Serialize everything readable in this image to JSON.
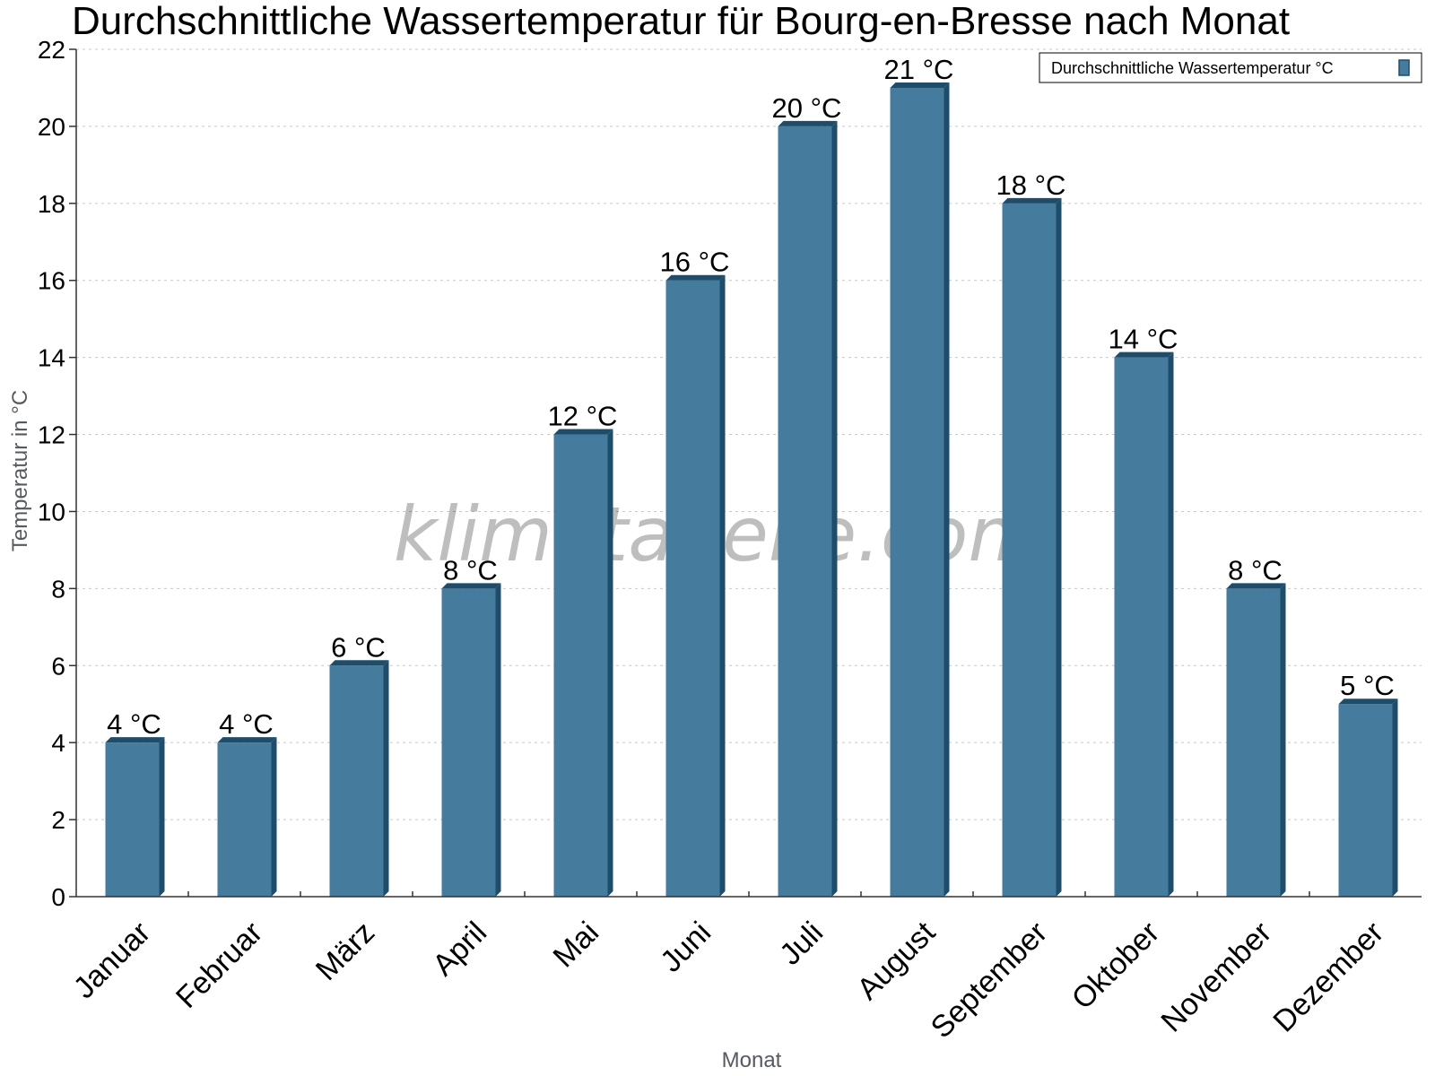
{
  "chart_data": {
    "type": "bar",
    "title": "Durchschnittliche Wassertemperatur für Bourg-en-Bresse nach Monat",
    "xlabel": "Monat",
    "ylabel": "Temperatur in °C",
    "categories": [
      "Januar",
      "Februar",
      "März",
      "April",
      "Mai",
      "Juni",
      "Juli",
      "August",
      "September",
      "Oktober",
      "November",
      "Dezember"
    ],
    "series": [
      {
        "name": "Durchschnittliche Wassertemperatur °C",
        "values": [
          4,
          4,
          6,
          8,
          12,
          16,
          20,
          21,
          18,
          14,
          8,
          5
        ],
        "labels": [
          "4 °C",
          "4 °C",
          "6 °C",
          "8 °C",
          "12 °C",
          "16 °C",
          "20 °C",
          "21 °C",
          "18 °C",
          "14 °C",
          "8 °C",
          "5 °C"
        ]
      }
    ],
    "ylim": [
      0,
      22
    ],
    "yticks": [
      0,
      2,
      4,
      6,
      8,
      10,
      12,
      14,
      16,
      18,
      20,
      22
    ],
    "grid": true,
    "legend_position": "top-right",
    "colors": {
      "bar": "#457b9d",
      "bar_shade": "#1e4d6b"
    },
    "watermark": "klimatabelle.com"
  }
}
